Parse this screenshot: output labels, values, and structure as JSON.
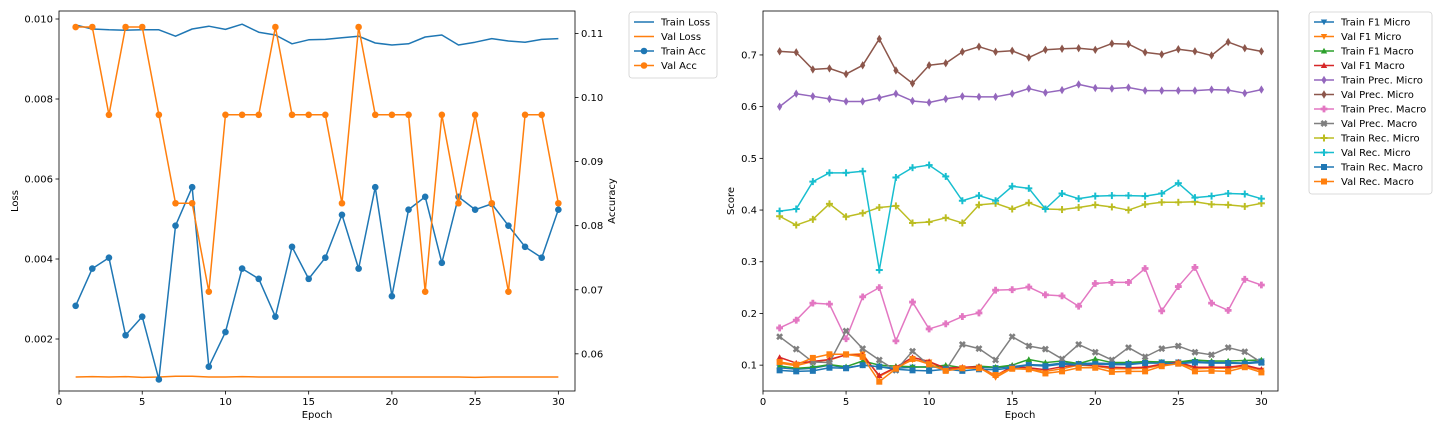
{
  "chart_data": [
    {
      "type": "line",
      "xlabel": "Epoch",
      "ylabel": "Loss",
      "ylabel_right": "Accuracy",
      "xlim": [
        0,
        31
      ],
      "ylim": [
        0.0007,
        0.0102
      ],
      "ylim_right": [
        0.0542,
        0.1135
      ],
      "xticks": [
        0,
        5,
        10,
        15,
        20,
        25,
        30
      ],
      "yticks": [
        0.002,
        0.004,
        0.006,
        0.008,
        0.01
      ],
      "ytick_labels": [
        "0.002",
        "0.004",
        "0.006",
        "0.008",
        "0.010"
      ],
      "yticks_right": [
        0.06,
        0.07,
        0.08,
        0.09,
        0.1,
        0.11
      ],
      "ytick_labels_right": [
        "0.06",
        "0.07",
        "0.08",
        "0.09",
        "0.10",
        "0.11"
      ],
      "grid": false,
      "legend_position": "outside-top-right",
      "x": [
        1,
        2,
        3,
        4,
        5,
        6,
        7,
        8,
        9,
        10,
        11,
        12,
        13,
        14,
        15,
        16,
        17,
        18,
        19,
        20,
        21,
        22,
        23,
        24,
        25,
        26,
        27,
        28,
        29,
        30
      ],
      "series": [
        {
          "name": "Train Loss",
          "axis": "left",
          "color": "#1f77b4",
          "marker": "none",
          "values": [
            0.00985,
            0.00975,
            0.00973,
            0.00972,
            0.00973,
            0.00973,
            0.00957,
            0.00975,
            0.00982,
            0.00974,
            0.00987,
            0.00967,
            0.0096,
            0.00938,
            0.00948,
            0.00949,
            0.00953,
            0.00957,
            0.0094,
            0.00935,
            0.00938,
            0.00955,
            0.0096,
            0.00935,
            0.00942,
            0.00951,
            0.00945,
            0.00942,
            0.00949,
            0.00951
          ]
        },
        {
          "name": "Val Loss",
          "axis": "left",
          "color": "#ff7f0e",
          "marker": "none",
          "values": [
            0.00105,
            0.00106,
            0.00105,
            0.00106,
            0.00104,
            0.00105,
            0.00107,
            0.00107,
            0.00105,
            0.00105,
            0.00106,
            0.00105,
            0.00105,
            0.00105,
            0.00105,
            0.00105,
            0.00105,
            0.00105,
            0.00105,
            0.00105,
            0.00105,
            0.00105,
            0.00105,
            0.00105,
            0.00104,
            0.00105,
            0.00105,
            0.00105,
            0.00105,
            0.00105
          ]
        },
        {
          "name": "Train Acc",
          "axis": "right",
          "color": "#1f77b4",
          "marker": "o",
          "values": [
            0.0675,
            0.0733,
            0.075,
            0.0629,
            0.0658,
            0.056,
            0.08,
            0.086,
            0.058,
            0.0634,
            0.0733,
            0.0717,
            0.0658,
            0.0767,
            0.0717,
            0.075,
            0.0817,
            0.0733,
            0.086,
            0.069,
            0.0825,
            0.0845,
            0.0742,
            0.0845,
            0.0825,
            0.0834,
            0.08,
            0.0767,
            0.075,
            0.0825
          ]
        },
        {
          "name": "Val Acc",
          "axis": "right",
          "color": "#ff7f0e",
          "marker": "o",
          "values": [
            0.111,
            0.111,
            0.0973,
            0.111,
            0.111,
            0.0973,
            0.0835,
            0.0835,
            0.0697,
            0.0973,
            0.0973,
            0.0973,
            0.111,
            0.0973,
            0.0973,
            0.0973,
            0.0835,
            0.111,
            0.0973,
            0.0973,
            0.0973,
            0.0697,
            0.0973,
            0.0835,
            0.0973,
            0.0835,
            0.0697,
            0.0973,
            0.0973,
            0.0835
          ]
        }
      ]
    },
    {
      "type": "line",
      "xlabel": "Epoch",
      "ylabel": "Score",
      "xlim": [
        0,
        31
      ],
      "ylim": [
        0.05,
        0.785
      ],
      "xticks": [
        0,
        5,
        10,
        15,
        20,
        25,
        30
      ],
      "yticks": [
        0.1,
        0.2,
        0.3,
        0.4,
        0.5,
        0.6,
        0.7
      ],
      "ytick_labels": [
        "0.1",
        "0.2",
        "0.3",
        "0.4",
        "0.5",
        "0.6",
        "0.7"
      ],
      "grid": false,
      "legend_position": "outside-top-right",
      "x": [
        1,
        2,
        3,
        4,
        5,
        6,
        7,
        8,
        9,
        10,
        11,
        12,
        13,
        14,
        15,
        16,
        17,
        18,
        19,
        20,
        21,
        22,
        23,
        24,
        25,
        26,
        27,
        28,
        29,
        30
      ],
      "series": [
        {
          "name": "Train F1 Micro",
          "color": "#1f77b4",
          "marker": "tri-down",
          "values": [
            0.095,
            0.092,
            0.094,
            0.1,
            0.095,
            0.1,
            0.097,
            0.094,
            0.096,
            0.097,
            0.095,
            0.094,
            0.096,
            0.095,
            0.097,
            0.101,
            0.1,
            0.104,
            0.103,
            0.104,
            0.103,
            0.103,
            0.105,
            0.106,
            0.106,
            0.107,
            0.105,
            0.105,
            0.104,
            0.108
          ]
        },
        {
          "name": "Val F1 Micro",
          "color": "#ff7f0e",
          "marker": "tri-down",
          "values": [
            0.104,
            0.099,
            0.107,
            0.11,
            0.12,
            0.122,
            0.078,
            0.095,
            0.11,
            0.106,
            0.092,
            0.094,
            0.096,
            0.076,
            0.094,
            0.092,
            0.088,
            0.093,
            0.1,
            0.098,
            0.093,
            0.093,
            0.094,
            0.1,
            0.104,
            0.093,
            0.094,
            0.094,
            0.098,
            0.09
          ]
        },
        {
          "name": "Train F1 Macro",
          "color": "#2ca02c",
          "marker": "tri-up",
          "values": [
            0.098,
            0.094,
            0.096,
            0.101,
            0.097,
            0.108,
            0.1,
            0.098,
            0.097,
            0.096,
            0.1,
            0.095,
            0.098,
            0.096,
            0.1,
            0.111,
            0.105,
            0.108,
            0.103,
            0.112,
            0.105,
            0.105,
            0.107,
            0.106,
            0.106,
            0.11,
            0.108,
            0.108,
            0.109,
            0.11
          ]
        },
        {
          "name": "Val F1 Macro",
          "color": "#d62728",
          "marker": "tri-up",
          "values": [
            0.115,
            0.104,
            0.107,
            0.111,
            0.12,
            0.119,
            0.08,
            0.096,
            0.115,
            0.107,
            0.094,
            0.096,
            0.097,
            0.08,
            0.097,
            0.095,
            0.091,
            0.097,
            0.101,
            0.099,
            0.096,
            0.095,
            0.096,
            0.102,
            0.106,
            0.096,
            0.096,
            0.096,
            0.1,
            0.092
          ]
        },
        {
          "name": "Train Prec. Micro",
          "color": "#9467bd",
          "marker": "thin-diamond",
          "values": [
            0.6,
            0.625,
            0.62,
            0.615,
            0.61,
            0.61,
            0.617,
            0.625,
            0.611,
            0.608,
            0.615,
            0.62,
            0.619,
            0.619,
            0.625,
            0.635,
            0.627,
            0.632,
            0.643,
            0.636,
            0.635,
            0.637,
            0.631,
            0.631,
            0.631,
            0.631,
            0.633,
            0.632,
            0.626,
            0.633
          ]
        },
        {
          "name": "Val Prec. Micro",
          "color": "#8c564b",
          "marker": "thin-diamond",
          "values": [
            0.707,
            0.705,
            0.672,
            0.674,
            0.663,
            0.68,
            0.731,
            0.67,
            0.645,
            0.68,
            0.684,
            0.706,
            0.716,
            0.706,
            0.708,
            0.695,
            0.71,
            0.712,
            0.713,
            0.71,
            0.722,
            0.721,
            0.705,
            0.701,
            0.711,
            0.707,
            0.699,
            0.725,
            0.713,
            0.707
          ]
        },
        {
          "name": "Train Prec. Macro",
          "color": "#e377c2",
          "marker": "plus-filled",
          "values": [
            0.172,
            0.187,
            0.22,
            0.218,
            0.151,
            0.232,
            0.25,
            0.147,
            0.222,
            0.17,
            0.18,
            0.194,
            0.201,
            0.245,
            0.246,
            0.251,
            0.236,
            0.234,
            0.214,
            0.258,
            0.26,
            0.26,
            0.287,
            0.205,
            0.252,
            0.289,
            0.22,
            0.206,
            0.266,
            0.255
          ]
        },
        {
          "name": "Val Prec. Macro",
          "color": "#7f7f7f",
          "marker": "x-filled",
          "values": [
            0.155,
            0.131,
            0.106,
            0.105,
            0.166,
            0.132,
            0.11,
            0.09,
            0.127,
            0.1,
            0.09,
            0.14,
            0.132,
            0.11,
            0.155,
            0.137,
            0.131,
            0.112,
            0.14,
            0.125,
            0.11,
            0.134,
            0.116,
            0.132,
            0.137,
            0.125,
            0.12,
            0.134,
            0.126,
            0.105
          ]
        },
        {
          "name": "Train Rec. Micro",
          "color": "#bcbd22",
          "marker": "plus-thick",
          "values": [
            0.388,
            0.371,
            0.382,
            0.412,
            0.387,
            0.394,
            0.405,
            0.408,
            0.375,
            0.377,
            0.385,
            0.375,
            0.41,
            0.413,
            0.402,
            0.414,
            0.402,
            0.401,
            0.405,
            0.41,
            0.406,
            0.4,
            0.411,
            0.415,
            0.415,
            0.416,
            0.411,
            0.41,
            0.407,
            0.413
          ]
        },
        {
          "name": "Val Rec. Micro",
          "color": "#17becf",
          "marker": "plus-thick",
          "values": [
            0.398,
            0.402,
            0.455,
            0.472,
            0.472,
            0.475,
            0.284,
            0.463,
            0.482,
            0.487,
            0.465,
            0.418,
            0.428,
            0.418,
            0.446,
            0.442,
            0.402,
            0.432,
            0.422,
            0.427,
            0.428,
            0.428,
            0.427,
            0.432,
            0.452,
            0.424,
            0.427,
            0.432,
            0.431,
            0.422
          ]
        },
        {
          "name": "Train Rec. Macro",
          "color": "#1f77b4",
          "marker": "square",
          "values": [
            0.09,
            0.088,
            0.089,
            0.095,
            0.094,
            0.1,
            0.097,
            0.092,
            0.09,
            0.089,
            0.092,
            0.089,
            0.092,
            0.091,
            0.095,
            0.1,
            0.098,
            0.102,
            0.1,
            0.102,
            0.101,
            0.101,
            0.104,
            0.104,
            0.103,
            0.105,
            0.104,
            0.104,
            0.103,
            0.105
          ]
        },
        {
          "name": "Val Rec. Macro",
          "color": "#ff7f0e",
          "marker": "square",
          "values": [
            0.106,
            0.101,
            0.114,
            0.121,
            0.121,
            0.116,
            0.068,
            0.093,
            0.112,
            0.102,
            0.089,
            0.094,
            0.094,
            0.081,
            0.093,
            0.092,
            0.084,
            0.088,
            0.095,
            0.095,
            0.087,
            0.088,
            0.088,
            0.098,
            0.103,
            0.088,
            0.089,
            0.088,
            0.096,
            0.086
          ]
        }
      ]
    }
  ]
}
